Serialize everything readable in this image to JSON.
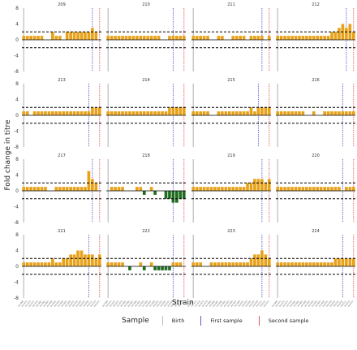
{
  "chart_data": {
    "type": "bar",
    "xlabel": "Strain",
    "ylabel": "Fold change in titre",
    "ylim": [
      -8,
      8
    ],
    "yticks": [
      "-8",
      "-4",
      "0",
      "4",
      "8"
    ],
    "threshold_lines": [
      2,
      -2
    ],
    "strains": [
      "A/1968",
      "A/1972",
      "A/1975",
      "A/1977",
      "A/1979",
      "A/1982",
      "A/1985",
      "A/1987",
      "A/1989",
      "A/1991",
      "A/1993",
      "A/1995",
      "A/1997",
      "A/1999",
      "A/2001",
      "A/2003",
      "A/2005",
      "A/2007",
      "A/2009",
      "A/2011",
      "A/2013",
      "A/2015"
    ],
    "legend": {
      "title": "Sample",
      "items": [
        {
          "label": "Birth",
          "color": "#bdbdbd"
        },
        {
          "label": "First sample",
          "color": "#5b5bd6"
        },
        {
          "label": "Second sample",
          "color": "#e0575f"
        }
      ]
    },
    "colors": {
      "positive": "#e8a21a",
      "negative": "#1f6b1f",
      "threshold": "#000000"
    },
    "panels": [
      {
        "title": "209",
        "birth": 0,
        "first": 19,
        "second": 21,
        "values": [
          1,
          1,
          1,
          1,
          1,
          1,
          0,
          0,
          2,
          1,
          1,
          0,
          2,
          2,
          2,
          2,
          2,
          2,
          2,
          3,
          2,
          0
        ]
      },
      {
        "title": "210",
        "birth": 0,
        "first": 18,
        "second": 21,
        "values": [
          1,
          1,
          1,
          1,
          1,
          1,
          1,
          1,
          1,
          1,
          1,
          1,
          1,
          1,
          1,
          0,
          0,
          1,
          1,
          1,
          1,
          1
        ]
      },
      {
        "title": "211",
        "birth": 0,
        "first": 19,
        "second": 21,
        "values": [
          1,
          1,
          1,
          1,
          1,
          0,
          0,
          1,
          1,
          0,
          0,
          1,
          1,
          1,
          1,
          0,
          1,
          1,
          1,
          1,
          0,
          1
        ]
      },
      {
        "title": "212",
        "birth": 0,
        "first": 19,
        "second": 21,
        "values": [
          1,
          1,
          1,
          1,
          1,
          1,
          1,
          1,
          1,
          1,
          1,
          1,
          1,
          1,
          1,
          2,
          2,
          3,
          4,
          3,
          4,
          2
        ]
      },
      {
        "title": "213",
        "birth": 0,
        "first": 18,
        "second": 21,
        "values": [
          1,
          1,
          0,
          1,
          1,
          1,
          1,
          1,
          1,
          1,
          1,
          1,
          1,
          1,
          1,
          1,
          1,
          1,
          1,
          2,
          2,
          2
        ]
      },
      {
        "title": "214",
        "birth": 0,
        "first": 18,
        "second": 21,
        "values": [
          1,
          1,
          1,
          1,
          1,
          1,
          1,
          1,
          1,
          1,
          1,
          1,
          1,
          1,
          1,
          1,
          1,
          2,
          2,
          2,
          2,
          2
        ]
      },
      {
        "title": "215",
        "birth": 0,
        "first": 18,
        "second": 21,
        "values": [
          1,
          1,
          1,
          1,
          1,
          0,
          0,
          1,
          1,
          1,
          1,
          1,
          1,
          1,
          1,
          1,
          2,
          1,
          2,
          2,
          2,
          2
        ]
      },
      {
        "title": "216",
        "birth": 0,
        "first": 18,
        "second": 21,
        "values": [
          1,
          1,
          1,
          1,
          1,
          1,
          1,
          1,
          0,
          0,
          1,
          0,
          0,
          1,
          1,
          1,
          1,
          1,
          1,
          1,
          1,
          1
        ]
      },
      {
        "title": "217",
        "birth": 0,
        "first": 19,
        "second": 21,
        "values": [
          1,
          1,
          1,
          1,
          1,
          1,
          1,
          0,
          0,
          1,
          1,
          1,
          1,
          1,
          1,
          1,
          1,
          1,
          5,
          3,
          2,
          0
        ]
      },
      {
        "title": "218",
        "birth": 0,
        "first": 18,
        "second": 21,
        "values": [
          0,
          1,
          1,
          1,
          1,
          0,
          0,
          0,
          1,
          1,
          -1,
          0,
          1,
          -1,
          0,
          0,
          -2,
          -2,
          -3,
          -3,
          -2,
          -2
        ]
      },
      {
        "title": "219",
        "birth": 0,
        "first": 19,
        "second": 21,
        "values": [
          1,
          1,
          1,
          1,
          1,
          1,
          1,
          1,
          1,
          1,
          1,
          1,
          1,
          1,
          1,
          2,
          2,
          3,
          3,
          3,
          2,
          3
        ]
      },
      {
        "title": "220",
        "birth": 0,
        "first": 18,
        "second": 21,
        "values": [
          1,
          1,
          1,
          1,
          1,
          1,
          1,
          1,
          1,
          1,
          1,
          1,
          1,
          1,
          1,
          1,
          1,
          1,
          0,
          1,
          1,
          1
        ]
      },
      {
        "title": "221",
        "birth": 0,
        "first": 18,
        "second": 21,
        "values": [
          1,
          1,
          1,
          1,
          1,
          1,
          1,
          1,
          2,
          1,
          1,
          2,
          2,
          3,
          3,
          4,
          4,
          3,
          3,
          3,
          2,
          3
        ]
      },
      {
        "title": "222",
        "birth": 0,
        "first": 18,
        "second": 21,
        "values": [
          1,
          1,
          1,
          1,
          1,
          0,
          -1,
          0,
          0,
          1,
          -1,
          0,
          1,
          -1,
          -1,
          -1,
          -1,
          -1,
          1,
          1,
          1,
          0
        ]
      },
      {
        "title": "223",
        "birth": 0,
        "first": 19,
        "second": 21,
        "values": [
          1,
          1,
          1,
          0,
          0,
          1,
          1,
          1,
          1,
          1,
          1,
          1,
          1,
          1,
          1,
          1,
          2,
          3,
          3,
          4,
          3,
          2
        ]
      },
      {
        "title": "224",
        "birth": 0,
        "first": 18,
        "second": 21,
        "values": [
          1,
          1,
          1,
          1,
          1,
          1,
          1,
          1,
          1,
          1,
          1,
          1,
          1,
          1,
          1,
          1,
          2,
          2,
          2,
          2,
          2,
          2
        ]
      }
    ]
  }
}
